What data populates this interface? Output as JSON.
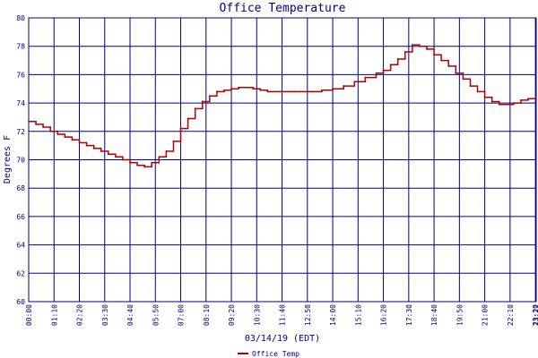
{
  "chart_data": {
    "type": "line",
    "title": "Office Temperature",
    "xlabel": "03/14/19 (EDT)",
    "ylabel": "Degrees F",
    "ylim": [
      60,
      80
    ],
    "xlim_hours": [
      0,
      23.37
    ],
    "y_ticks": [
      "60",
      "62",
      "64",
      "66",
      "68",
      "70",
      "72",
      "74",
      "76",
      "78",
      "80"
    ],
    "x_ticks": [
      "00:00",
      "01:10",
      "02:20",
      "03:30",
      "04:40",
      "05:50",
      "07:00",
      "08:10",
      "09:20",
      "10:30",
      "11:40",
      "12:50",
      "14:00",
      "15:10",
      "16:20",
      "17:30",
      "18:40",
      "19:50",
      "21:00",
      "22:10",
      "23:20",
      "23:22"
    ],
    "grid": true,
    "legend_position": "bottom",
    "colors": {
      "series": "#b00000",
      "grid": "#000080",
      "text": "#000080"
    },
    "series": [
      {
        "name": "Office Temp",
        "x": [
          "00:00",
          "00:20",
          "00:40",
          "01:00",
          "01:20",
          "01:40",
          "02:00",
          "02:20",
          "02:40",
          "03:00",
          "03:20",
          "03:40",
          "04:00",
          "04:20",
          "04:40",
          "05:00",
          "05:20",
          "05:40",
          "06:00",
          "06:20",
          "06:40",
          "07:00",
          "07:20",
          "07:40",
          "08:00",
          "08:20",
          "08:40",
          "09:00",
          "09:20",
          "09:40",
          "10:00",
          "10:20",
          "10:40",
          "11:00",
          "11:30",
          "12:00",
          "12:30",
          "13:00",
          "13:30",
          "14:00",
          "14:30",
          "15:00",
          "15:30",
          "16:00",
          "16:20",
          "16:40",
          "17:00",
          "17:20",
          "17:40",
          "18:00",
          "18:20",
          "18:40",
          "19:00",
          "19:20",
          "19:40",
          "20:00",
          "20:20",
          "20:40",
          "21:00",
          "21:20",
          "21:40",
          "22:00",
          "22:20",
          "22:40",
          "23:00",
          "23:22"
        ],
        "values": [
          72.7,
          72.5,
          72.3,
          72.0,
          71.8,
          71.6,
          71.4,
          71.2,
          71.0,
          70.8,
          70.6,
          70.4,
          70.2,
          70.0,
          69.8,
          69.6,
          69.5,
          69.8,
          70.2,
          70.6,
          71.3,
          72.2,
          72.9,
          73.6,
          74.1,
          74.5,
          74.8,
          74.9,
          75.0,
          75.1,
          75.1,
          75.0,
          74.9,
          74.8,
          74.8,
          74.8,
          74.8,
          74.8,
          74.9,
          75.0,
          75.2,
          75.5,
          75.8,
          76.1,
          76.3,
          76.7,
          77.1,
          77.6,
          78.1,
          78.0,
          77.8,
          77.4,
          77.0,
          76.6,
          76.1,
          75.7,
          75.2,
          74.8,
          74.4,
          74.1,
          73.9,
          73.9,
          74.0,
          74.2,
          74.3,
          74.4
        ]
      }
    ]
  }
}
